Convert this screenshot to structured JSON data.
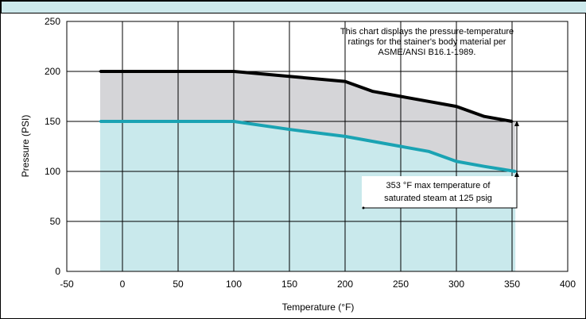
{
  "colors": {
    "header_band": "#cde9ec",
    "upper_fill": "#d5d5d8",
    "lower_fill": "#c9e9ec",
    "upper_line": "#000000",
    "lower_line": "#1aa3b3",
    "grid": "#000000"
  },
  "chart_data": {
    "type": "area",
    "xlabel": "Temperature (°F)",
    "ylabel": "Pressure (PSI)",
    "xlim": [
      -50,
      400
    ],
    "ylim": [
      0,
      250
    ],
    "xticks": [
      -50,
      0,
      50,
      100,
      150,
      200,
      250,
      300,
      350,
      400
    ],
    "yticks": [
      0,
      50,
      100,
      150,
      200,
      250
    ],
    "grid": true,
    "series": [
      {
        "color": "#000000",
        "x": [
          -20,
          100,
          150,
          200,
          225,
          250,
          275,
          300,
          325,
          350
        ],
        "y": [
          200,
          200,
          195,
          190,
          180,
          175,
          170,
          165,
          155,
          150
        ]
      },
      {
        "color": "#1aa3b3",
        "x": [
          -20,
          100,
          150,
          200,
          250,
          275,
          300,
          325,
          353
        ],
        "y": [
          150,
          150,
          142,
          135,
          125,
          120,
          110,
          105,
          100
        ]
      }
    ],
    "annotations": [
      {
        "lines": [
          "This chart displays the pressure-temperature",
          "ratings  for the stainer's body material per",
          "ASME/ANSI B16.1-1989."
        ]
      },
      {
        "lines": [
          "353 °F max temperature of",
          "saturated steam at 125 psig"
        ]
      }
    ]
  }
}
